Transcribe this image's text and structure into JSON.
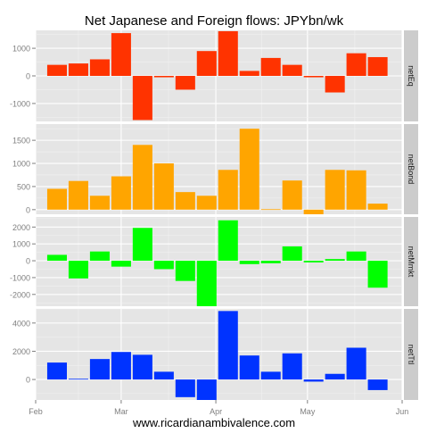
{
  "chart_data": {
    "type": "bar",
    "title": "Net Japanese and Foreign flows: JPYbn/wk",
    "footer": "www.ricardianambivalence.com",
    "x_tick_labels": [
      "Feb",
      "Mar",
      "Apr",
      "May",
      "Jun"
    ],
    "x_ticks": [
      "2013-02-01",
      "2013-03-01",
      "2013-04-01",
      "2013-05-01",
      "2013-06-01"
    ],
    "x_range": [
      "2013-02-01",
      "2013-06-01"
    ],
    "dates": [
      "2013-02-08",
      "2013-02-15",
      "2013-02-22",
      "2013-03-01",
      "2013-03-08",
      "2013-03-15",
      "2013-03-22",
      "2013-03-29",
      "2013-04-05",
      "2013-04-12",
      "2013-04-19",
      "2013-04-26",
      "2013-05-03",
      "2013-05-10",
      "2013-05-17",
      "2013-05-24"
    ],
    "panels": [
      {
        "name": "netEq",
        "color": "#ff3300",
        "ylim": [
          -1650,
          1650
        ],
        "yticks": [
          -1000,
          0,
          1000
        ],
        "values": [
          400,
          450,
          600,
          1550,
          -1600,
          -50,
          -500,
          900,
          1620,
          180,
          650,
          400,
          -50,
          -600,
          820,
          680
        ]
      },
      {
        "name": "netBond",
        "color": "#ffa500",
        "ylim": [
          -100,
          1850
        ],
        "yticks": [
          0,
          500,
          1000,
          1500
        ],
        "values": [
          450,
          620,
          300,
          720,
          1400,
          1000,
          380,
          300,
          860,
          1750,
          10,
          630,
          -100,
          860,
          850,
          130
        ]
      },
      {
        "name": "netMmkt",
        "color": "#00ff00",
        "ylim": [
          -2700,
          2600
        ],
        "yticks": [
          -2000,
          -1000,
          0,
          1000,
          2000
        ],
        "values": [
          350,
          -1050,
          550,
          -350,
          1950,
          -500,
          -1200,
          -2700,
          2400,
          -200,
          -150,
          850,
          -100,
          100,
          550,
          -1600
        ]
      },
      {
        "name": "netTtl",
        "color": "#0033ff",
        "ylim": [
          -1450,
          5000
        ],
        "yticks": [
          0,
          2000,
          4000
        ],
        "values": [
          1200,
          50,
          1450,
          1950,
          1750,
          550,
          -1250,
          -1450,
          4850,
          1700,
          550,
          1850,
          -150,
          400,
          2250,
          -750
        ]
      }
    ]
  }
}
